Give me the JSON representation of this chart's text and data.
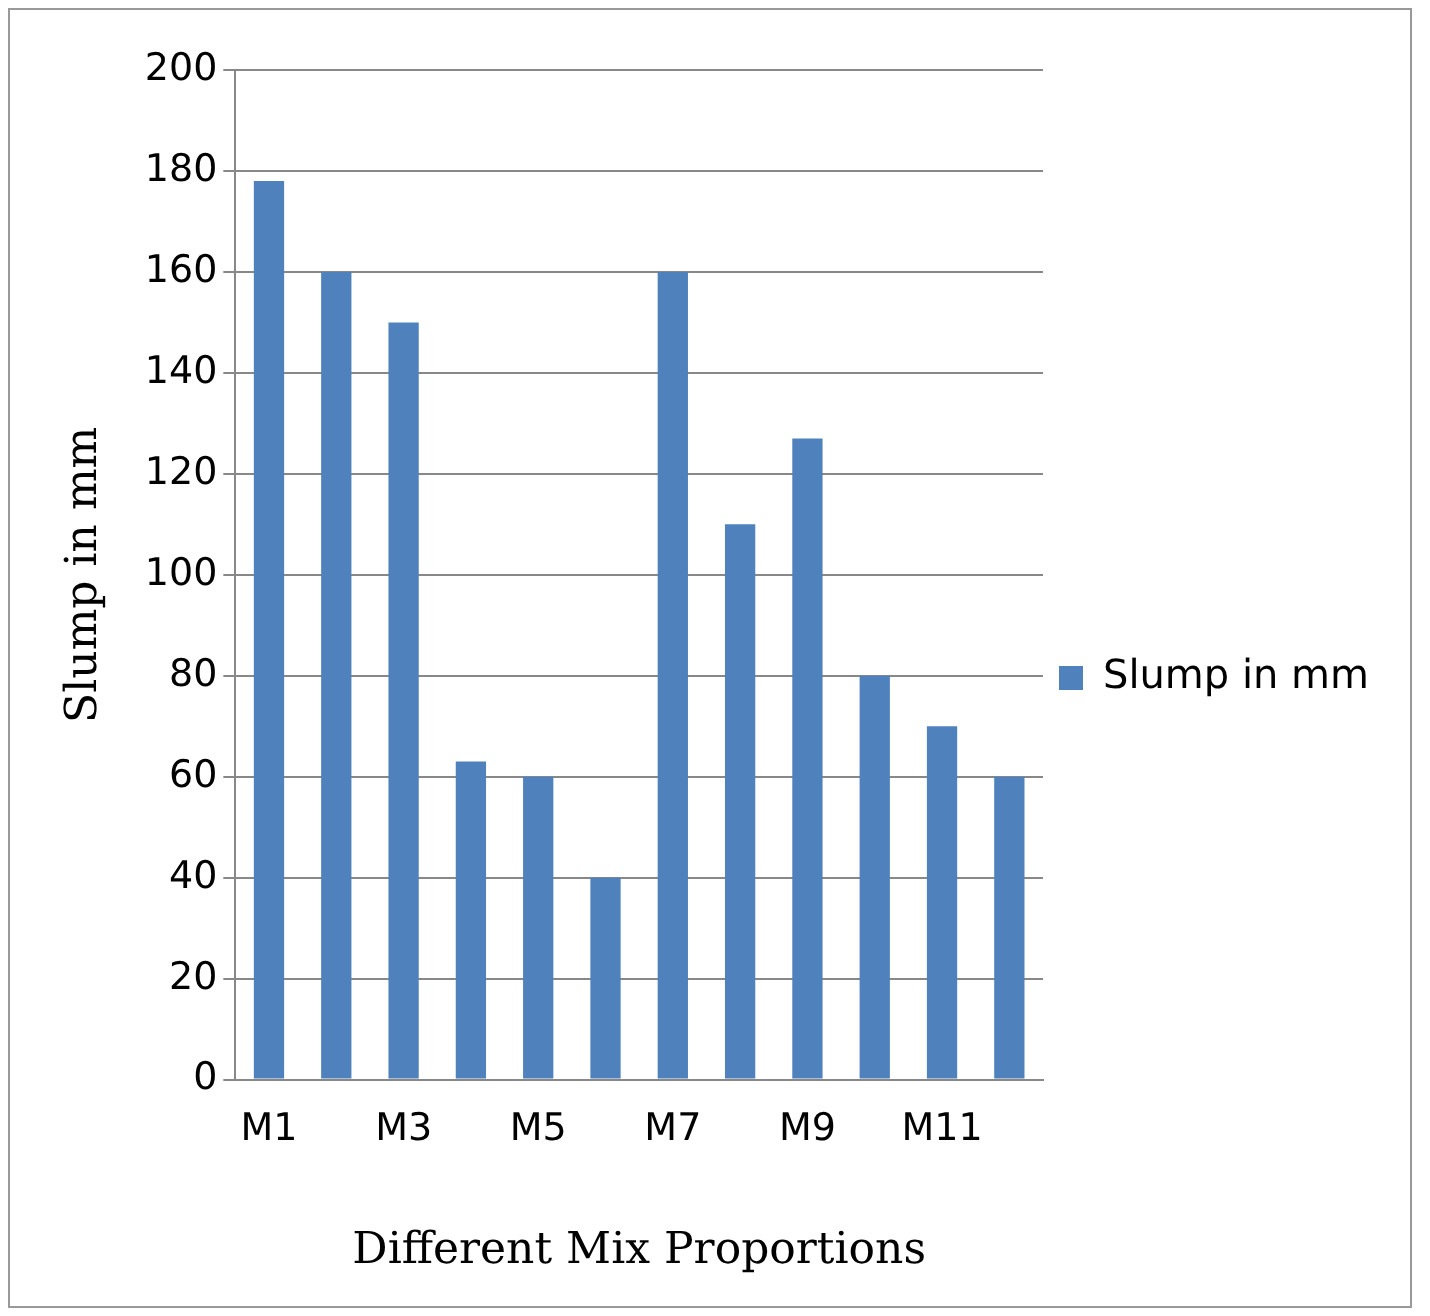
{
  "chart_data": {
    "type": "bar",
    "xlabel": "Different Mix Proportions",
    "ylabel": "Slump in mm",
    "categories": [
      "M1",
      null,
      "M3",
      null,
      "M5",
      null,
      "M7",
      null,
      "M9",
      null,
      "M11",
      null
    ],
    "series": [
      {
        "name": "Slump in mm",
        "color": "#4f81bd",
        "values": [
          178,
          160,
          150,
          63,
          60,
          40,
          160,
          110,
          127,
          80,
          70,
          60
        ]
      }
    ],
    "ylim": [
      0,
      200
    ],
    "yticks": [
      0,
      20,
      40,
      60,
      80,
      100,
      120,
      140,
      160,
      180,
      200
    ],
    "grid": "y",
    "legend": "right"
  }
}
